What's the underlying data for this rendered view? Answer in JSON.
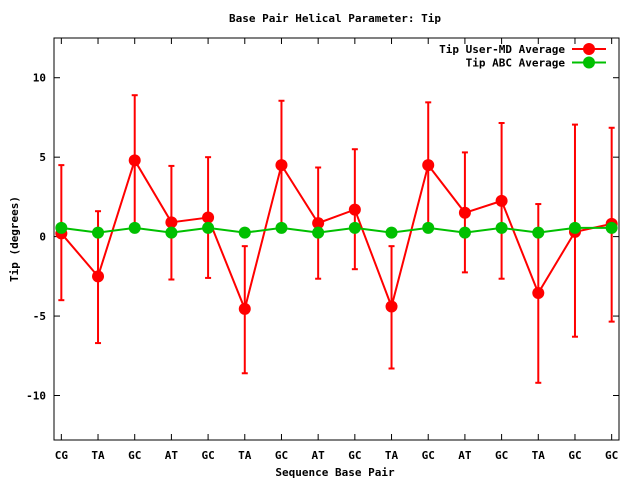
{
  "chart_data": {
    "type": "line",
    "title": "Base Pair Helical Parameter: Tip",
    "xlabel": "Sequence Base Pair",
    "ylabel": "Tip (degrees)",
    "categories": [
      "CG",
      "TA",
      "GC",
      "AT",
      "GC",
      "TA",
      "GC",
      "AT",
      "GC",
      "TA",
      "GC",
      "AT",
      "GC",
      "TA",
      "GC",
      "GC"
    ],
    "xlim": [
      0.8,
      16.2
    ],
    "ylim": [
      -12.8,
      12.5
    ],
    "yticks": [
      -10,
      -5,
      0,
      5,
      10
    ],
    "ytick_labels": [
      "-10",
      "-5",
      "0",
      "5",
      "10"
    ],
    "grid": false,
    "legend_position": "top-right",
    "series": [
      {
        "name": "Tip User-MD Average",
        "color": "#ff0000",
        "values": [
          0.2,
          -2.5,
          4.8,
          0.9,
          1.2,
          -4.55,
          4.5,
          0.85,
          1.7,
          -4.4,
          4.5,
          1.5,
          2.25,
          -3.55,
          0.3,
          0.8
        ],
        "err_high": [
          4.5,
          1.6,
          8.9,
          4.45,
          5.0,
          -0.6,
          8.55,
          4.35,
          5.5,
          -0.6,
          8.45,
          5.3,
          7.15,
          2.05,
          7.05,
          6.85
        ],
        "err_low": [
          -4.0,
          -6.7,
          0.5,
          -2.7,
          -2.6,
          -8.6,
          0.5,
          -2.65,
          -2.05,
          -8.3,
          0.5,
          -2.25,
          -2.65,
          -9.2,
          -6.3,
          -5.35
        ]
      },
      {
        "name": "Tip ABC Average",
        "color": "#00c000",
        "values": [
          0.55,
          0.25,
          0.55,
          0.25,
          0.55,
          0.25,
          0.55,
          0.25,
          0.55,
          0.25,
          0.55,
          0.25,
          0.55,
          0.25,
          0.55,
          0.55
        ]
      }
    ]
  }
}
